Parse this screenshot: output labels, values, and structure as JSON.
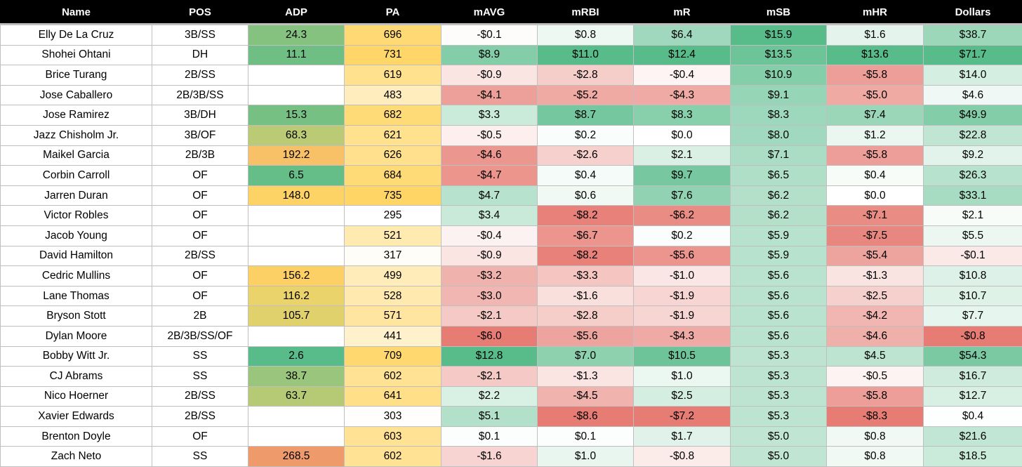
{
  "table": {
    "headers": [
      "Name",
      "POS",
      "ADP",
      "PA",
      "mAVG",
      "mRBI",
      "mR",
      "mSB",
      "mHR",
      "Dollars"
    ],
    "rows": [
      {
        "name": "Elly De La Cruz",
        "pos": "3B/SS",
        "adp": "24.3",
        "pa": "696",
        "mavg": "-$0.1",
        "mrbi": "$0.8",
        "mr": "$6.4",
        "msb": "$15.9",
        "mhr": "$1.6",
        "dollars": "$38.7"
      },
      {
        "name": "Shohei Ohtani",
        "pos": "DH",
        "adp": "11.1",
        "pa": "731",
        "mavg": "$8.9",
        "mrbi": "$11.0",
        "mr": "$12.4",
        "msb": "$13.5",
        "mhr": "$13.6",
        "dollars": "$71.7"
      },
      {
        "name": "Brice Turang",
        "pos": "2B/SS",
        "adp": "",
        "pa": "619",
        "mavg": "-$0.9",
        "mrbi": "-$2.8",
        "mr": "-$0.4",
        "msb": "$10.9",
        "mhr": "-$5.8",
        "dollars": "$14.0"
      },
      {
        "name": "Jose Caballero",
        "pos": "2B/3B/SS",
        "adp": "",
        "pa": "483",
        "mavg": "-$4.1",
        "mrbi": "-$5.2",
        "mr": "-$4.3",
        "msb": "$9.1",
        "mhr": "-$5.0",
        "dollars": "$4.6"
      },
      {
        "name": "Jose Ramirez",
        "pos": "3B/DH",
        "adp": "15.3",
        "pa": "682",
        "mavg": "$3.3",
        "mrbi": "$8.7",
        "mr": "$8.3",
        "msb": "$8.3",
        "mhr": "$7.4",
        "dollars": "$49.9"
      },
      {
        "name": "Jazz Chisholm Jr.",
        "pos": "3B/OF",
        "adp": "68.3",
        "pa": "621",
        "mavg": "-$0.5",
        "mrbi": "$0.2",
        "mr": "$0.0",
        "msb": "$8.0",
        "mhr": "$1.2",
        "dollars": "$22.8"
      },
      {
        "name": "Maikel Garcia",
        "pos": "2B/3B",
        "adp": "192.2",
        "pa": "626",
        "mavg": "-$4.6",
        "mrbi": "-$2.6",
        "mr": "$2.1",
        "msb": "$7.1",
        "mhr": "-$5.8",
        "dollars": "$9.2"
      },
      {
        "name": "Corbin Carroll",
        "pos": "OF",
        "adp": "6.5",
        "pa": "684",
        "mavg": "-$4.7",
        "mrbi": "$0.4",
        "mr": "$9.7",
        "msb": "$6.5",
        "mhr": "$0.4",
        "dollars": "$26.3"
      },
      {
        "name": "Jarren Duran",
        "pos": "OF",
        "adp": "148.0",
        "pa": "735",
        "mavg": "$4.7",
        "mrbi": "$0.6",
        "mr": "$7.6",
        "msb": "$6.2",
        "mhr": "$0.0",
        "dollars": "$33.1"
      },
      {
        "name": "Victor Robles",
        "pos": "OF",
        "adp": "",
        "pa": "295",
        "mavg": "$3.4",
        "mrbi": "-$8.2",
        "mr": "-$6.2",
        "msb": "$6.2",
        "mhr": "-$7.1",
        "dollars": "$2.1"
      },
      {
        "name": "Jacob Young",
        "pos": "OF",
        "adp": "",
        "pa": "521",
        "mavg": "-$0.4",
        "mrbi": "-$6.7",
        "mr": "$0.2",
        "msb": "$5.9",
        "mhr": "-$7.5",
        "dollars": "$5.5"
      },
      {
        "name": "David Hamilton",
        "pos": "2B/SS",
        "adp": "",
        "pa": "317",
        "mavg": "-$0.9",
        "mrbi": "-$8.2",
        "mr": "-$5.6",
        "msb": "$5.9",
        "mhr": "-$5.4",
        "dollars": "-$0.1"
      },
      {
        "name": "Cedric Mullins",
        "pos": "OF",
        "adp": "156.2",
        "pa": "499",
        "mavg": "-$3.2",
        "mrbi": "-$3.3",
        "mr": "-$1.0",
        "msb": "$5.6",
        "mhr": "-$1.3",
        "dollars": "$10.8"
      },
      {
        "name": "Lane Thomas",
        "pos": "OF",
        "adp": "116.2",
        "pa": "528",
        "mavg": "-$3.0",
        "mrbi": "-$1.6",
        "mr": "-$1.9",
        "msb": "$5.6",
        "mhr": "-$2.5",
        "dollars": "$10.7"
      },
      {
        "name": "Bryson Stott",
        "pos": "2B",
        "adp": "105.7",
        "pa": "571",
        "mavg": "-$2.1",
        "mrbi": "-$2.8",
        "mr": "-$1.9",
        "msb": "$5.6",
        "mhr": "-$4.2",
        "dollars": "$7.7"
      },
      {
        "name": "Dylan Moore",
        "pos": "2B/3B/SS/OF",
        "adp": "",
        "pa": "441",
        "mavg": "-$6.0",
        "mrbi": "-$5.6",
        "mr": "-$4.3",
        "msb": "$5.6",
        "mhr": "-$4.6",
        "dollars": "-$0.8"
      },
      {
        "name": "Bobby Witt Jr.",
        "pos": "SS",
        "adp": "2.6",
        "pa": "709",
        "mavg": "$12.8",
        "mrbi": "$7.0",
        "mr": "$10.5",
        "msb": "$5.3",
        "mhr": "$4.5",
        "dollars": "$54.3"
      },
      {
        "name": "CJ Abrams",
        "pos": "SS",
        "adp": "38.7",
        "pa": "602",
        "mavg": "-$2.1",
        "mrbi": "-$1.3",
        "mr": "$1.0",
        "msb": "$5.3",
        "mhr": "-$0.5",
        "dollars": "$16.7"
      },
      {
        "name": "Nico Hoerner",
        "pos": "2B/SS",
        "adp": "63.7",
        "pa": "641",
        "mavg": "$2.2",
        "mrbi": "-$4.5",
        "mr": "$2.5",
        "msb": "$5.3",
        "mhr": "-$5.8",
        "dollars": "$12.7"
      },
      {
        "name": "Xavier Edwards",
        "pos": "2B/SS",
        "adp": "",
        "pa": "303",
        "mavg": "$5.1",
        "mrbi": "-$8.6",
        "mr": "-$7.2",
        "msb": "$5.3",
        "mhr": "-$8.3",
        "dollars": "$0.4"
      },
      {
        "name": "Brenton Doyle",
        "pos": "OF",
        "adp": "",
        "pa": "603",
        "mavg": "$0.1",
        "mrbi": "$0.1",
        "mr": "$1.7",
        "msb": "$5.0",
        "mhr": "$0.8",
        "dollars": "$21.6"
      },
      {
        "name": "Zach Neto",
        "pos": "SS",
        "adp": "268.5",
        "pa": "602",
        "mavg": "-$1.6",
        "mrbi": "$1.0",
        "mr": "-$0.8",
        "msb": "$5.0",
        "mhr": "$0.8",
        "dollars": "$18.5"
      }
    ]
  },
  "colors": {
    "header_bg": "#000000",
    "header_text": "#ffffff",
    "positive_green": "#57bb8a",
    "negative_red": "#e67c73",
    "adp_low_green": "#57bb8a",
    "adp_mid_yellow": "#ffd666",
    "adp_high_orange": "#e67c73",
    "pa_high_yellow": "#ffd666"
  }
}
